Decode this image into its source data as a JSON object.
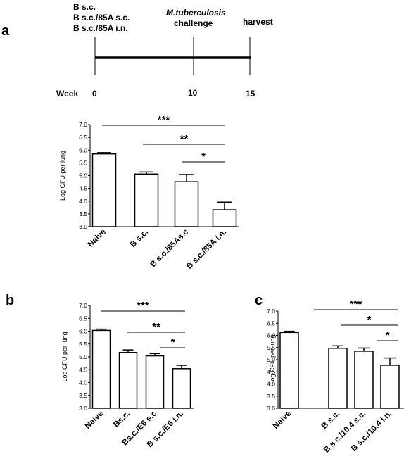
{
  "panel_a_letter": "a",
  "panel_b_letter": "b",
  "panel_c_letter": "c",
  "timeline": {
    "groups": [
      "B  s.c.",
      "B s.c./85A s.c.",
      "B s.c./85A i.n."
    ],
    "challenge_organism": "M.tuberculosis",
    "challenge_word": "challenge",
    "harvest": "harvest",
    "week_label": "Week",
    "week_ticks": [
      "0",
      "10",
      "15"
    ]
  },
  "chart_data": [
    {
      "panel": "a",
      "type": "bar",
      "ylabel": "Log  CFU per lung",
      "ylim": [
        3.0,
        7.0
      ],
      "yticks": [
        "3.0",
        "3.5",
        "4.0",
        "4.5",
        "5.0",
        "5.5",
        "6.0",
        "6.5",
        "7.0"
      ],
      "categories": [
        "Naive",
        "B s.c.",
        "B s.c./85As.c",
        "B s.c./85A i.n."
      ],
      "values": [
        5.85,
        5.06,
        4.76,
        3.66
      ],
      "errors": [
        0.05,
        0.08,
        0.28,
        0.3
      ],
      "significance": [
        {
          "label": "***",
          "from": 0,
          "to": 3
        },
        {
          "label": "**",
          "from": 1,
          "to": 3
        },
        {
          "label": "*",
          "from": 2,
          "to": 3
        }
      ]
    },
    {
      "panel": "b",
      "type": "bar",
      "ylabel": "Log CFU per lung",
      "ylim": [
        3.0,
        7.0
      ],
      "yticks": [
        "3.0",
        "3.5",
        "4.0",
        "4.5",
        "5.0",
        "5.5",
        "6.0",
        "6.5",
        "7.0"
      ],
      "categories": [
        "Naive",
        "Bs.c.",
        "Bs.c./E6 s.c",
        "B s.c./E6 i.n."
      ],
      "values": [
        6.03,
        5.17,
        5.04,
        4.54
      ],
      "errors": [
        0.05,
        0.1,
        0.09,
        0.13
      ],
      "significance": [
        {
          "label": "***",
          "from": 0,
          "to": 3
        },
        {
          "label": "**",
          "from": 1,
          "to": 3
        },
        {
          "label": "*",
          "from": 2,
          "to": 3
        }
      ]
    },
    {
      "panel": "c",
      "type": "bar",
      "ylabel": "Log CFU per lung",
      "ylim": [
        3.0,
        7.0
      ],
      "yticks": [
        "3.0",
        "3.5",
        "4.0",
        "4.5",
        "5.0",
        "5.5",
        "6.0",
        "6.5",
        "7.0"
      ],
      "categories": [
        "Naive",
        "B s.c.",
        "B s.c./10.4 s.c.",
        "B s.c./10.4 i.n."
      ],
      "values": [
        6.12,
        5.47,
        5.35,
        4.77
      ],
      "errors": [
        0.05,
        0.1,
        0.13,
        0.3
      ],
      "significance": [
        {
          "label": "***",
          "from": 0,
          "to": 3
        },
        {
          "label": "*",
          "from": 1,
          "to": 3
        },
        {
          "label": "*",
          "from": 2,
          "to": 3
        }
      ]
    }
  ]
}
